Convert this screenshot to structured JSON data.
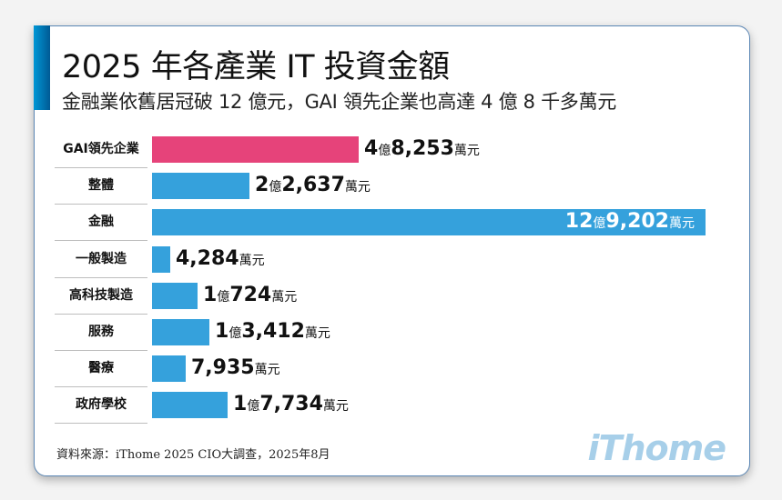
{
  "header": {
    "title": "2025 年各產業 IT 投資金額",
    "subtitle": "金融業依舊居冠破 12 億元，GAI 領先企業也高達 4 億 8 千多萬元"
  },
  "rows": [
    {
      "label": "GAI領先企業",
      "yi": "4",
      "yi_unit": "億",
      "wan": "8,253",
      "unit": "萬元",
      "value": 48253,
      "color": "#e6437a"
    },
    {
      "label": "整體",
      "yi": "2",
      "yi_unit": "億",
      "wan": "2,637",
      "unit": "萬元",
      "value": 22637,
      "color": "#35a1dc"
    },
    {
      "label": "金融",
      "yi": "12",
      "yi_unit": "億",
      "wan": "9,202",
      "unit": "萬元",
      "value": 129202,
      "color": "#35a1dc"
    },
    {
      "label": "一般製造",
      "yi": "",
      "yi_unit": "",
      "wan": "4,284",
      "unit": "萬元",
      "value": 4284,
      "color": "#35a1dc"
    },
    {
      "label": "高科技製造",
      "yi": "1",
      "yi_unit": "億",
      "wan": "724",
      "unit": "萬元",
      "value": 10724,
      "color": "#35a1dc"
    },
    {
      "label": "服務",
      "yi": "1",
      "yi_unit": "億",
      "wan": "3,412",
      "unit": "萬元",
      "value": 13412,
      "color": "#35a1dc"
    },
    {
      "label": "醫療",
      "yi": "",
      "yi_unit": "",
      "wan": "7,935",
      "unit": "萬元",
      "value": 7935,
      "color": "#35a1dc"
    },
    {
      "label": "政府學校",
      "yi": "1",
      "yi_unit": "億",
      "wan": "7,734",
      "unit": "萬元",
      "value": 17734,
      "color": "#35a1dc"
    }
  ],
  "footer": {
    "source": "資料來源：iThome 2025 CIO大調查，2025年8月",
    "logo": "iThome"
  },
  "chart_data": {
    "type": "bar",
    "orientation": "horizontal",
    "title": "2025 年各產業 IT 投資金額",
    "subtitle": "金融業依舊居冠破 12 億元，GAI 領先企業也高達 4 億 8 千多萬元",
    "categories": [
      "GAI領先企業",
      "整體",
      "金融",
      "一般製造",
      "高科技製造",
      "服務",
      "醫療",
      "政府學校"
    ],
    "values": [
      48253,
      22637,
      129202,
      4284,
      10724,
      13412,
      7935,
      17734
    ],
    "unit": "萬元",
    "data_labels": [
      "4億8,253萬元",
      "2億2,637萬元",
      "12億9,202萬元",
      "4,284萬元",
      "1億724萬元",
      "1億3,412萬元",
      "7,935萬元",
      "1億7,734萬元"
    ],
    "colors": [
      "#e6437a",
      "#35a1dc",
      "#35a1dc",
      "#35a1dc",
      "#35a1dc",
      "#35a1dc",
      "#35a1dc",
      "#35a1dc"
    ],
    "xlabel": "",
    "ylabel": "",
    "grid": false,
    "legend": "none",
    "source": "資料來源：iThome 2025 CIO大調查，2025年8月"
  }
}
